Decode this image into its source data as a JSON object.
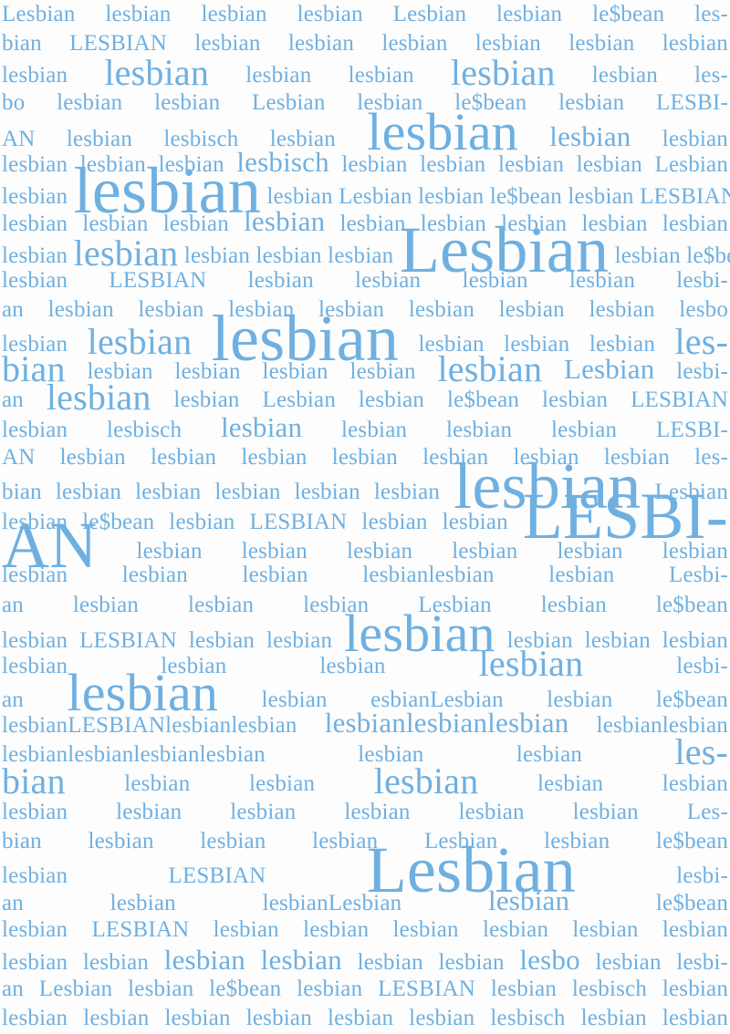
{
  "poster": {
    "lines": [
      [
        "Lesbian",
        "lesbian",
        "lesbian",
        "lesbian",
        "Lesbian",
        "lesbian",
        "le$bean",
        "les-"
      ],
      [
        "bian",
        "LESBIAN",
        "lesbian",
        "lesbian",
        "lesbian",
        "lesbian",
        "lesbian",
        "lesbian"
      ],
      [
        "lesbian",
        "lesbian",
        "lesbian",
        "lesbian",
        "lesbian",
        "lesbian",
        "les-"
      ],
      [
        "bo",
        "lesbian",
        "lesbian",
        "Lesbian",
        "lesbian",
        "le$bean",
        "lesbian",
        "LESBI-"
      ],
      [
        "AN",
        "lesbian",
        "lesbisch",
        "lesbian",
        "lesbian",
        "lesbian",
        "lesbian"
      ],
      [
        "lesbian",
        "lesbian",
        "lesbian",
        "lesbisch",
        "lesbian",
        "lesbian",
        "lesbian",
        "lesbian",
        "Lesbian"
      ],
      [
        "lesbian",
        "lesbian",
        "lesbian",
        "Lesbian",
        "lesbian",
        "le$bean",
        "lesbian",
        "LESBIAN"
      ],
      [
        "lesbian",
        "lesbian",
        "lesbian",
        "lesbian",
        "lesbian",
        "lesbian",
        "lesbian",
        "lesbian",
        "lesbian"
      ],
      [
        "lesbian",
        "lesbian",
        "lesbian",
        "lesbian",
        "lesbian",
        "Lesbian",
        "lesbian",
        "le$bean"
      ],
      [
        "lesbian",
        "LESBIAN",
        "lesbian",
        "lesbian",
        "lesbian",
        "lesbian",
        "lesbi-"
      ],
      [
        "an",
        "lesbian",
        "lesbian",
        "lesbian",
        "lesbian",
        "lesbian",
        "lesbian",
        "lesbian",
        "lesbo"
      ],
      [
        "lesbian",
        "lesbian",
        "lesbian",
        "lesbian",
        "lesbian",
        "lesbian",
        "les-"
      ],
      [
        "bian",
        "lesbian",
        "lesbian",
        "lesbian",
        "lesbian",
        "lesbian",
        "Lesbian",
        "lesbi-"
      ],
      [
        "an",
        "lesbian",
        "lesbian",
        "Lesbian",
        "lesbian",
        "le$bean",
        "lesbian",
        "LESBIAN"
      ],
      [
        "lesbian",
        "lesbisch",
        "lesbian",
        "lesbian",
        "lesbian",
        "lesbian",
        "LESBI-"
      ],
      [
        "AN",
        "lesbian",
        "lesbian",
        "lesbian",
        "lesbian",
        "lesbian",
        "lesbian",
        "lesbian",
        "les-"
      ],
      [
        "bian",
        "lesbian",
        "lesbian",
        "lesbian",
        "lesbian",
        "lesbian",
        "lesbian",
        "Lesbian"
      ],
      [
        "lesbian",
        "le$bean",
        "lesbian",
        "LESBIAN",
        "lesbian",
        "lesbian",
        "LESBI-"
      ],
      [
        "AN",
        "lesbian",
        "lesbian",
        "lesbian",
        "lesbian",
        "lesbian",
        "lesbian"
      ],
      [
        "lesbian",
        "lesbian",
        "lesbian",
        "lesbianlesbian",
        "lesbian",
        "Lesbi-"
      ],
      [
        "an",
        "lesbian",
        "lesbian",
        "lesbian",
        "Lesbian",
        "lesbian",
        "le$bean"
      ],
      [
        "lesbian",
        "LESBIAN",
        "lesbian",
        "lesbian",
        "lesbian",
        "lesbian",
        "lesbian",
        "lesbian"
      ],
      [
        "lesbian",
        "lesbian",
        "lesbian",
        "lesbian",
        "lesbi-"
      ],
      [
        "an",
        "lesbian",
        "lesbian",
        "esbianLesbian",
        "lesbian",
        "le$bean"
      ],
      [
        "lesbianLESBIANlesbianlesbian",
        "lesbianlesbianlesbian",
        "lesbianlesbian"
      ],
      [
        "lesbianlesbianlesbianlesbian",
        "lesbian",
        "lesbian",
        "les-"
      ],
      [
        "bian",
        "lesbian",
        "lesbian",
        "lesbian",
        "lesbian",
        "lesbian"
      ],
      [
        "lesbian",
        "lesbian",
        "lesbian",
        "lesbian",
        "lesbian",
        "lesbian",
        "Les-"
      ],
      [
        "bian",
        "lesbian",
        "lesbian",
        "lesbian",
        "Lesbian",
        "lesbian",
        "le$bean"
      ],
      [
        "lesbian",
        "LESBIAN",
        "Lesbian",
        "lesbi-"
      ],
      [
        "an",
        "lesbian",
        "lesbianLesbian",
        "lesbian",
        "le$bean"
      ],
      [
        "lesbian",
        "LESBIAN",
        "lesbian",
        "lesbian",
        "lesbian",
        "lesbian",
        "lesbian",
        "lesbian"
      ],
      [
        "lesbian",
        "lesbian",
        "lesbian",
        "lesbian",
        "lesbian",
        "lesbian",
        "lesbo",
        "lesbian",
        "lesbi-"
      ],
      [
        "an",
        "Lesbian",
        "lesbian",
        "le$bean",
        "lesbian",
        "LESBIAN",
        "lesbian",
        "lesbisch",
        "lesbian"
      ],
      [
        "lesbian",
        "lesbian",
        "lesbian",
        "lesbian",
        "lesbian",
        "lesbian",
        "lesbisch",
        "lesbian",
        "lesbian"
      ]
    ],
    "emphasis": {
      "2": {
        "1": "big",
        "4": "big"
      },
      "4": {
        "4": "huge",
        "5": "mid"
      },
      "5": {
        "3": "mid"
      },
      "6": {
        "1": "giant"
      },
      "7": {
        "3": "mid"
      },
      "8": {
        "1": "big",
        "5": "giant"
      },
      "11": {
        "1": "big",
        "2": "giant",
        "6": "big"
      },
      "12": {
        "0": "big",
        "5": "big",
        "6": "mid"
      },
      "13": {
        "1": "big"
      },
      "14": {
        "2": "mid"
      },
      "16": {
        "6": "giant"
      },
      "17": {
        "6": "giant"
      },
      "18": {
        "0": "giant"
      },
      "21": {
        "4": "huge"
      },
      "22": {
        "3": "big"
      },
      "23": {
        "1": "huge"
      },
      "24": {
        "1": "mid"
      },
      "25": {
        "3": "big"
      },
      "26": {
        "0": "big",
        "3": "big"
      },
      "29": {
        "2": "giant"
      },
      "30": {
        "3": "mid"
      },
      "32": {
        "2": "mid",
        "3": "mid",
        "6": "mid"
      }
    }
  }
}
